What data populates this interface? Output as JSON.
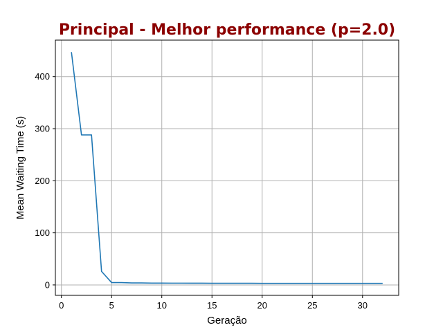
{
  "chart_data": {
    "type": "line",
    "title": "Principal - Melhor performance (p=2.0)",
    "xlabel": "Geração",
    "ylabel": "Mean Waiting Time (s)",
    "xlim": [
      -0.6,
      33.6
    ],
    "ylim": [
      -20,
      470
    ],
    "xticks": [
      0,
      5,
      10,
      15,
      20,
      25,
      30
    ],
    "yticks": [
      0,
      100,
      200,
      300,
      400
    ],
    "grid": true,
    "legend": "none",
    "colors": {
      "title": "#8b0000",
      "line": "#1f77b4",
      "grid": "#b0b0b0"
    },
    "series": [
      {
        "x": [
          1,
          2,
          3,
          4,
          5,
          6,
          7,
          8,
          9,
          10,
          11,
          12,
          13,
          14,
          15,
          16,
          17,
          18,
          19,
          20,
          21,
          22,
          23,
          24,
          25,
          26,
          27,
          28,
          29,
          30,
          31,
          32
        ],
        "values": [
          447,
          288,
          288,
          26,
          4.5,
          4.5,
          3.8,
          3.8,
          3.5,
          3.5,
          3.4,
          3.4,
          3.3,
          3.3,
          3.2,
          3.2,
          3.2,
          3.1,
          3.1,
          3.0,
          3.0,
          3.0,
          3.0,
          3.0,
          3.0,
          3.0,
          3.0,
          3.0,
          3.0,
          3.0,
          3.0,
          3.0
        ]
      }
    ]
  }
}
